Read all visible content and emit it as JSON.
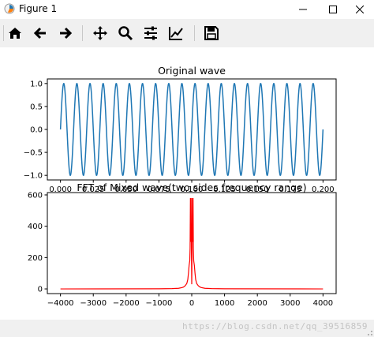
{
  "window": {
    "title": "Figure 1",
    "controls": [
      "minimize",
      "maximize",
      "close"
    ]
  },
  "toolbar": {
    "buttons": [
      {
        "name": "home",
        "icon": "home-icon"
      },
      {
        "name": "back",
        "icon": "arrow-left-icon"
      },
      {
        "name": "forward",
        "icon": "arrow-right-icon"
      },
      {
        "name": "pan",
        "icon": "move-icon"
      },
      {
        "name": "zoom",
        "icon": "magnifier-icon"
      },
      {
        "name": "subplots",
        "icon": "sliders-icon"
      },
      {
        "name": "customize",
        "icon": "chart-edit-icon"
      },
      {
        "name": "save",
        "icon": "floppy-disk-icon"
      }
    ]
  },
  "statusbar": {
    "watermark": "https://blog.csdn.net/qq_39516859"
  },
  "chart_data": [
    {
      "type": "line",
      "title": "Original wave",
      "color": "#1f77b4",
      "function": "sin(2*pi*100*t)",
      "frequency_hz": 100,
      "x_range": [
        0,
        0.2
      ],
      "xlim": [
        -0.01,
        0.21
      ],
      "ylim": [
        -1.1,
        1.1
      ],
      "xticks": [
        0.0,
        0.025,
        0.05,
        0.075,
        0.1,
        0.125,
        0.15,
        0.175,
        0.2
      ],
      "xtick_labels": [
        "0.000",
        "0.025",
        "0.050",
        "0.075",
        "0.100",
        "0.125",
        "0.150",
        "0.175",
        "0.200"
      ],
      "yticks": [
        -1.0,
        -0.5,
        0.0,
        0.5,
        1.0
      ],
      "ytick_labels": [
        "−1.0",
        "−0.5",
        "0.0",
        "0.5",
        "1.0"
      ]
    },
    {
      "type": "line",
      "title": "FFT of Mixed wave(two sides frequency range)",
      "color": "#ff0000",
      "x": [
        -4000,
        -1000,
        -600,
        -400,
        -300,
        -250,
        -200,
        -150,
        -120,
        -100,
        -80,
        -60,
        -50,
        -40,
        -30,
        -20,
        -10,
        0,
        10,
        20,
        30,
        40,
        50,
        60,
        80,
        100,
        120,
        150,
        200,
        250,
        300,
        400,
        600,
        1000,
        4000
      ],
      "y": [
        0,
        1,
        2,
        4,
        8,
        12,
        20,
        35,
        60,
        100,
        150,
        180,
        260,
        580,
        300,
        580,
        270,
        30,
        270,
        580,
        300,
        580,
        260,
        180,
        150,
        100,
        60,
        35,
        20,
        12,
        8,
        4,
        2,
        1,
        0
      ],
      "xlim": [
        -4400,
        4400
      ],
      "ylim": [
        -30,
        615
      ],
      "xticks": [
        -4000,
        -3000,
        -2000,
        -1000,
        0,
        1000,
        2000,
        3000,
        4000
      ],
      "xtick_labels": [
        "−4000",
        "−3000",
        "−2000",
        "−1000",
        "0",
        "1000",
        "2000",
        "3000",
        "4000"
      ],
      "yticks": [
        0,
        200,
        400,
        600
      ],
      "ytick_labels": [
        "0",
        "200",
        "400",
        "600"
      ]
    }
  ]
}
